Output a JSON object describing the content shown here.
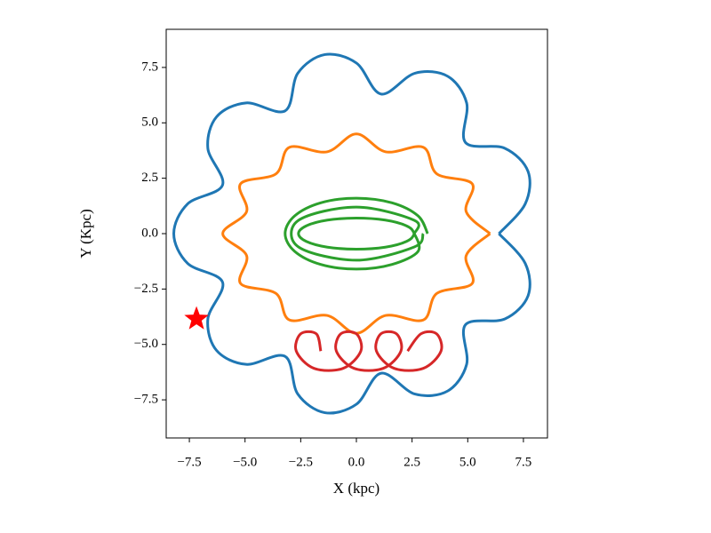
{
  "chart_data": {
    "type": "line",
    "x_label": "X (kpc)",
    "y_label": "Y (Kpc)",
    "xlim": [
      -8.54,
      8.58
    ],
    "ylim": [
      -9.22,
      9.22
    ],
    "xticks": [
      {
        "value": -7.5,
        "label": "−7.5"
      },
      {
        "value": -5.0,
        "label": "−5.0"
      },
      {
        "value": -2.5,
        "label": "−2.5"
      },
      {
        "value": 0,
        "label": "0.0"
      },
      2.5,
      {
        "value": 5.0,
        "label": "5.0"
      },
      7.5
    ],
    "yticks": [
      {
        "value": -7.5,
        "label": "−7.5"
      },
      {
        "value": -5.0,
        "label": "−5.0"
      },
      {
        "value": -2.5,
        "label": "−2.5"
      },
      {
        "value": 0,
        "label": "0.0"
      },
      2.5,
      {
        "value": 5.0,
        "label": "5.0"
      },
      7.5
    ],
    "grid": false,
    "series": [
      {
        "color": "#1f77b4",
        "x": [
          6.4,
          7.58,
          7.71,
          6.67,
          4.9,
          4.95,
          4.1,
          2.63,
          1.11,
          0,
          -1.42,
          -2.63,
          -3.2,
          -4.95,
          -6.28,
          -6.67,
          -6.01,
          -7.58,
          -8.2,
          -7.58,
          -6.01,
          -6.67,
          -6.28,
          -4.95,
          -3.2,
          -2.63,
          -1.42,
          0,
          1.11,
          2.63,
          4.1,
          4.95,
          4.9,
          6.67,
          7.71,
          7.58,
          6.4
        ],
        "values": [
          0,
          1.34,
          2.8,
          3.85,
          4.11,
          5.9,
          7.1,
          7.24,
          6.3,
          7.7,
          8.08,
          7.24,
          5.54,
          5.9,
          5.27,
          3.85,
          2.19,
          1.34,
          0,
          -1.34,
          -2.19,
          -3.85,
          -5.27,
          -5.9,
          -5.54,
          -7.24,
          -8.08,
          -7.7,
          -6.3,
          -7.24,
          -7.1,
          -5.9,
          -4.11,
          -3.85,
          -2.8,
          -1.34,
          0
        ]
      },
      {
        "color": "#ff7f0e",
        "x": [
          6,
          4.93,
          5.2,
          3.61,
          3.0,
          1.32,
          0,
          -1.32,
          -3.0,
          -3.61,
          -5.2,
          -4.93,
          -6,
          -4.93,
          -5.2,
          -3.61,
          -3.0,
          -1.32,
          0,
          1.32,
          3.0,
          3.61,
          5.2,
          4.93,
          6
        ],
        "values": [
          0,
          0.99,
          2.25,
          2.7,
          3.9,
          3.69,
          4.5,
          3.69,
          3.9,
          2.7,
          2.25,
          0.99,
          0,
          -0.99,
          -2.25,
          -2.7,
          -3.9,
          -3.69,
          -4.5,
          -3.69,
          -3.9,
          -2.7,
          -2.25,
          -0.99,
          0
        ]
      },
      {
        "color": "#2ca02c",
        "x": [
          3.2,
          2.77,
          1.6,
          0,
          -1.6,
          -2.77,
          -3.2,
          -2.77,
          -1.6,
          0,
          1.6,
          2.77,
          2.6,
          2.25,
          1.3,
          0,
          -1.3,
          -2.25,
          -2.6,
          -2.25,
          -1.3,
          0,
          1.3,
          2.25,
          2.6,
          2.6,
          0,
          -2.6,
          -2.6,
          0,
          2.6,
          3.0
        ],
        "values": [
          0,
          0.8,
          1.39,
          1.6,
          1.39,
          0.8,
          0,
          -0.8,
          -1.39,
          -1.6,
          -1.39,
          -0.8,
          0,
          0.35,
          0.61,
          0.7,
          0.61,
          0.35,
          0,
          -0.35,
          -0.61,
          -0.7,
          -0.61,
          -0.35,
          0,
          0.6,
          1.2,
          0.6,
          -0.6,
          -1.2,
          -0.6,
          0
        ]
      },
      {
        "color": "#d62728",
        "x": [
          -1.6,
          -1.8,
          -2.5,
          -2.7,
          -1.9,
          -0.6,
          0.2,
          0.0,
          -0.7,
          -0.9,
          -0.1,
          1.2,
          2.0,
          1.8,
          1.1,
          0.9,
          1.7,
          3.0,
          3.8,
          3.6,
          2.9,
          2.3
        ],
        "values": [
          -5.3,
          -4.52,
          -4.52,
          -5.3,
          -6.08,
          -6.08,
          -5.3,
          -4.52,
          -4.52,
          -5.3,
          -6.08,
          -6.08,
          -5.3,
          -4.52,
          -4.52,
          -5.3,
          -6.08,
          -6.08,
          -5.3,
          -4.52,
          -4.52,
          -5.3
        ]
      },
      {
        "color": "#ff0000",
        "marker": "star",
        "x": [
          -7.18
        ],
        "values": [
          -3.85
        ]
      }
    ]
  }
}
